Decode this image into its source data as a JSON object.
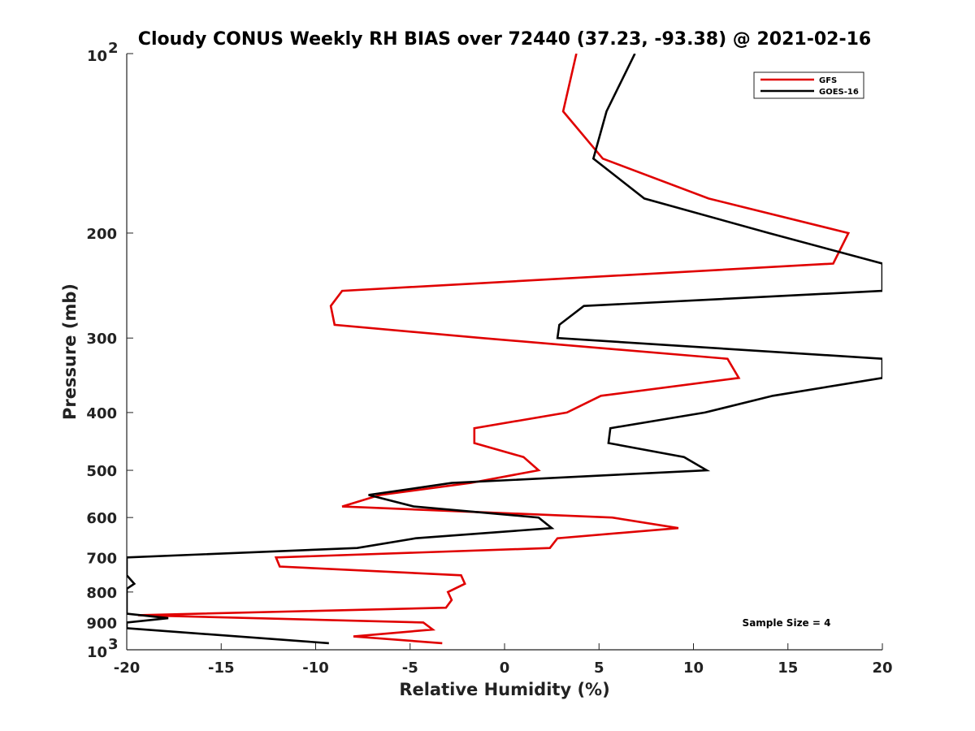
{
  "chart_data": {
    "type": "line",
    "title": "Cloudy CONUS Weekly RH BIAS over 72440 (37.23, -93.38) @ 2021-02-16",
    "xlabel": "Relative Humidity (%)",
    "ylabel": "Pressure (mb)",
    "xlim": [
      -20,
      20
    ],
    "ylim": [
      100,
      1000
    ],
    "y_scale": "log",
    "y_reversed": true,
    "grid": false,
    "legend_position": "top-right",
    "x_ticks": [
      -20,
      -15,
      -10,
      -5,
      0,
      5,
      10,
      15,
      20
    ],
    "x_tick_labels": [
      "-20",
      "-15",
      "-10",
      "-5",
      "0",
      "5",
      "10",
      "15",
      "20"
    ],
    "y_ticks": [
      200,
      300,
      400,
      500,
      600,
      700,
      800,
      900
    ],
    "y_tick_labels": [
      "200",
      "300",
      "400",
      "500",
      "600",
      "700",
      "800",
      "900"
    ],
    "y_top_label": {
      "base": "10",
      "exp": "2"
    },
    "y_bottom_label": {
      "base": "10",
      "exp": "3"
    },
    "annotation": "Sample Size = 4",
    "series": [
      {
        "name": "GFS",
        "color": "#e00000",
        "points": [
          {
            "x": 3.8,
            "y": 100
          },
          {
            "x": 3.1,
            "y": 125
          },
          {
            "x": 5.2,
            "y": 150
          },
          {
            "x": 10.8,
            "y": 175
          },
          {
            "x": 18.2,
            "y": 200
          },
          {
            "x": 17.4,
            "y": 225
          },
          {
            "x": -8.6,
            "y": 250
          },
          {
            "x": -9.2,
            "y": 265
          },
          {
            "x": -9.0,
            "y": 285
          },
          {
            "x": -1.2,
            "y": 300
          },
          {
            "x": 11.8,
            "y": 325
          },
          {
            "x": 12.4,
            "y": 350
          },
          {
            "x": 5.1,
            "y": 375
          },
          {
            "x": 3.3,
            "y": 400
          },
          {
            "x": -1.6,
            "y": 425
          },
          {
            "x": -1.6,
            "y": 450
          },
          {
            "x": 1.0,
            "y": 475
          },
          {
            "x": 1.8,
            "y": 500
          },
          {
            "x": -1.8,
            "y": 525
          },
          {
            "x": -6.6,
            "y": 550
          },
          {
            "x": -8.6,
            "y": 575
          },
          {
            "x": 5.7,
            "y": 600
          },
          {
            "x": 9.2,
            "y": 625
          },
          {
            "x": 2.8,
            "y": 650
          },
          {
            "x": 2.4,
            "y": 675
          },
          {
            "x": -12.1,
            "y": 700
          },
          {
            "x": -11.9,
            "y": 725
          },
          {
            "x": -2.3,
            "y": 750
          },
          {
            "x": -2.1,
            "y": 775
          },
          {
            "x": -3.0,
            "y": 800
          },
          {
            "x": -2.8,
            "y": 825
          },
          {
            "x": -3.1,
            "y": 850
          },
          {
            "x": -19.4,
            "y": 875
          },
          {
            "x": -4.3,
            "y": 900
          },
          {
            "x": -3.8,
            "y": 925
          },
          {
            "x": -8.0,
            "y": 950
          },
          {
            "x": -3.3,
            "y": 975
          }
        ]
      },
      {
        "name": "GOES-16",
        "color": "#000000",
        "points": [
          {
            "x": 6.9,
            "y": 100
          },
          {
            "x": 5.4,
            "y": 125
          },
          {
            "x": 4.7,
            "y": 150
          },
          {
            "x": 7.4,
            "y": 175
          },
          {
            "x": 14.0,
            "y": 200
          },
          {
            "x": 20.0,
            "y": 225
          },
          {
            "x": 20.0,
            "y": 250
          },
          {
            "x": 4.2,
            "y": 265
          },
          {
            "x": 2.9,
            "y": 285
          },
          {
            "x": 2.8,
            "y": 300
          },
          {
            "x": 20.0,
            "y": 325
          },
          {
            "x": 20.0,
            "y": 350
          },
          {
            "x": 14.2,
            "y": 375
          },
          {
            "x": 10.6,
            "y": 400
          },
          {
            "x": 5.6,
            "y": 425
          },
          {
            "x": 5.5,
            "y": 450
          },
          {
            "x": 9.5,
            "y": 475
          },
          {
            "x": 10.7,
            "y": 500
          },
          {
            "x": -2.8,
            "y": 525
          },
          {
            "x": -7.2,
            "y": 550
          },
          {
            "x": -4.8,
            "y": 575
          },
          {
            "x": 1.8,
            "y": 600
          },
          {
            "x": 2.5,
            "y": 625
          },
          {
            "x": -4.7,
            "y": 650
          },
          {
            "x": -7.8,
            "y": 675
          },
          {
            "x": -20.0,
            "y": 700
          },
          {
            "x": -20.0,
            "y": 750
          },
          {
            "x": -19.6,
            "y": 775
          },
          {
            "x": -20.0,
            "y": 790
          },
          {
            "x": -20.0,
            "y": 870
          },
          {
            "x": -17.8,
            "y": 885
          },
          {
            "x": -20.0,
            "y": 900
          },
          {
            "x": -20.0,
            "y": 920
          },
          {
            "x": -9.3,
            "y": 975
          }
        ]
      }
    ]
  }
}
